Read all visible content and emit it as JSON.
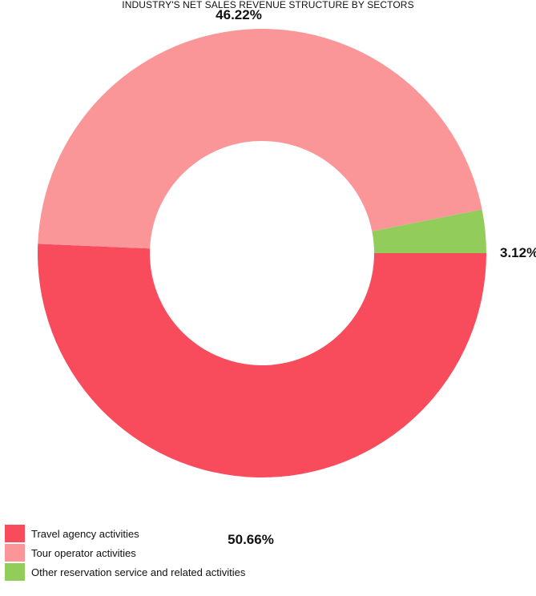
{
  "chart_data": {
    "type": "pie",
    "variant": "donut",
    "title": "INDUSTRY'S NET SALES REVENUE STRUCTURE BY SECTORS",
    "slices": [
      {
        "label": "Travel agency activities",
        "value": 50.66,
        "display": "50.66%",
        "color": "#F84C5C"
      },
      {
        "label": "Tour operator activities",
        "value": 46.22,
        "display": "46.22%",
        "color": "#FB9698"
      },
      {
        "label": "Other reservation service and related activities",
        "value": 3.12,
        "display": "3.12%",
        "color": "#92CD5C"
      }
    ],
    "legend_position": "bottom-left"
  }
}
